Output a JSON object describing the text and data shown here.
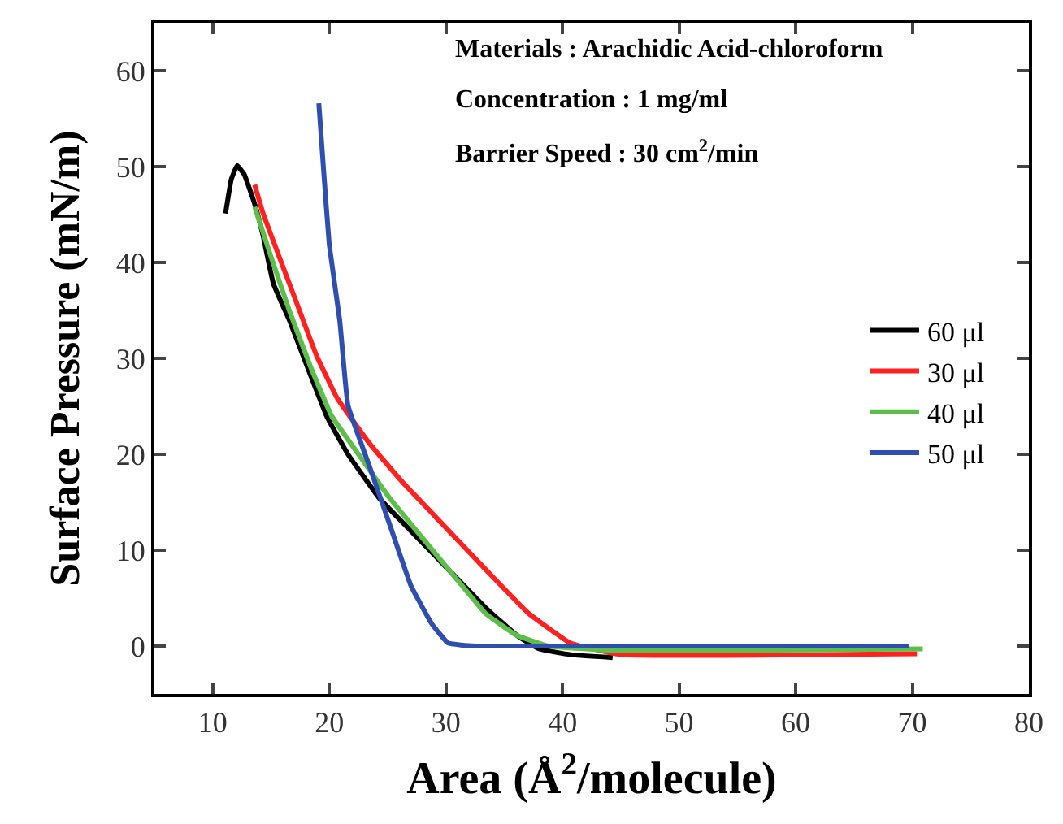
{
  "chart_data": {
    "type": "line",
    "xlabel": "Area (Å$^{2}$/molecule)",
    "ylabel": "Surface Pressure (mN/m)",
    "annotations": [
      "Materials : Arachidic Acid-chloroform",
      "Concentration : 1 mg/ml",
      "Barrier Speed : 30 cm$^{2}$/min"
    ],
    "xlim": [
      5,
      80
    ],
    "xticks": [
      10,
      20,
      30,
      40,
      50,
      60,
      70,
      80
    ],
    "ylim": [
      -5,
      65
    ],
    "yticks": [
      0,
      10,
      20,
      30,
      40,
      50,
      60
    ],
    "legend": "right",
    "marker": "none",
    "line_style": "solid",
    "series": [
      {
        "name": "60 μl",
        "color": "#000000",
        "x": [
          11.1,
          11.6,
          12.1,
          12.7,
          13.6,
          14.3,
          15.2,
          16.6,
          18.4,
          19.8,
          21.6,
          24.3,
          27.0,
          30.2,
          33.4,
          36.1,
          38.0,
          40.7,
          44.3
        ],
        "values": [
          45.1,
          48.7,
          50.1,
          49.2,
          46.1,
          42.9,
          37.8,
          33.9,
          28.2,
          23.9,
          20.0,
          15.4,
          12.0,
          8.0,
          4.0,
          1.1,
          -0.3,
          -0.9,
          -1.2
        ]
      },
      {
        "name": "30 μl",
        "color": "#ff2020",
        "x": [
          13.6,
          14.3,
          15.7,
          17.1,
          18.9,
          20.7,
          23.4,
          26.2,
          29.8,
          33.4,
          37.1,
          40.7,
          45.0,
          70.4
        ],
        "values": [
          48.1,
          45.2,
          40.6,
          36.1,
          30.3,
          25.8,
          21.2,
          17.2,
          12.6,
          8.0,
          3.4,
          0.3,
          -0.9,
          -0.8
        ]
      },
      {
        "name": "40 μl",
        "color": "#5cbf4a",
        "x": [
          13.6,
          15.0,
          16.6,
          18.4,
          20.2,
          22.5,
          25.2,
          27.9,
          30.7,
          33.4,
          36.1,
          38.8,
          45.0,
          70.9
        ],
        "values": [
          45.8,
          40.6,
          34.9,
          29.1,
          24.0,
          20.0,
          15.4,
          11.4,
          7.3,
          3.4,
          1.1,
          0.0,
          -0.5,
          -0.3
        ]
      },
      {
        "name": "50 μl",
        "color": "#2f4fb0",
        "x": [
          19.1,
          19.5,
          20.0,
          20.9,
          21.6,
          23.4,
          25.2,
          27.0,
          28.8,
          30.2,
          32.5,
          69.7
        ],
        "values": [
          56.6,
          49.8,
          41.8,
          33.9,
          25.1,
          18.9,
          12.6,
          6.3,
          2.3,
          0.3,
          0.0,
          0.0
        ]
      }
    ]
  }
}
